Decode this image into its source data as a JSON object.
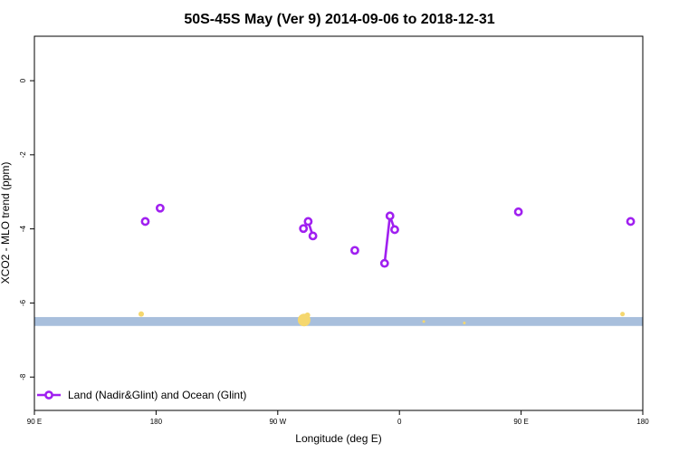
{
  "chart_data": {
    "type": "line",
    "title": "50S-45S May (Ver 9)   2014-09-06 to 2018-12-31",
    "xlabel": "Longitude (deg E)",
    "ylabel": "XCO2 - MLO trend (ppm)",
    "x_ticks": [
      {
        "value": 90,
        "label": "90 E"
      },
      {
        "value": 180,
        "label": "180"
      },
      {
        "value": 270,
        "label": "90 W"
      },
      {
        "value": 360,
        "label": "0"
      },
      {
        "value": 450,
        "label": "90 E"
      },
      {
        "value": 540,
        "label": "180"
      }
    ],
    "y_ticks": [
      {
        "value": 0,
        "label": "0"
      },
      {
        "value": -2,
        "label": "-2"
      },
      {
        "value": -4,
        "label": "-4"
      },
      {
        "value": -6,
        "label": "-6"
      },
      {
        "value": -8,
        "label": "-8"
      }
    ],
    "xlim": [
      90,
      540
    ],
    "ylim": [
      -8.9,
      1.2
    ],
    "grid": false,
    "legend_position": "bottom-left",
    "series": [
      {
        "name": "Land (Nadir&Glint) and Ocean (Glint)",
        "color": "#a020f0",
        "segments": [
          [
            [
              172,
              -3.8
            ]
          ],
          [
            [
              183,
              -3.44
            ]
          ],
          [
            [
              289,
              -3.99
            ],
            [
              292.5,
              -3.8
            ],
            [
              296,
              -4.19
            ]
          ],
          [
            [
              327,
              -4.58
            ]
          ],
          [
            [
              349,
              -4.93
            ],
            [
              353,
              -3.65
            ],
            [
              356.5,
              -4.02
            ]
          ],
          [
            [
              448,
              -3.54
            ]
          ],
          [
            [
              531,
              -3.8
            ]
          ]
        ]
      }
    ],
    "band": {
      "y_from": -6.62,
      "y_to": -6.38,
      "color": "#a8bfdc"
    },
    "yellow_markers": [
      {
        "x": 169,
        "y": -6.3,
        "r": 3
      },
      {
        "x": 289.5,
        "y": -6.46,
        "r": 7
      },
      {
        "x": 292,
        "y": -6.33,
        "r": 3
      },
      {
        "x": 378,
        "y": -6.5,
        "r": 1.5
      },
      {
        "x": 408,
        "y": -6.54,
        "r": 1.5
      },
      {
        "x": 525,
        "y": -6.3,
        "r": 2.5
      }
    ],
    "yellow_color": "#f5d76e"
  }
}
